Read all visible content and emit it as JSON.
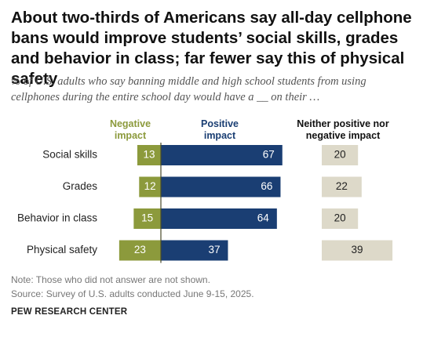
{
  "title": "About two-thirds of Americans say all-day cellphone bans would improve students’ social skills, grades and behavior in class; far fewer say this of physical safety",
  "subtitle": "% of U.S. adults who say banning middle and high school students from using cellphones during the entire school day would have a __ on their …",
  "colors": {
    "negative": "#8c9a3c",
    "positive": "#1a3e73",
    "neither": "#ddd9c9",
    "divider": "#4a4a2a"
  },
  "chart_data": {
    "type": "bar",
    "categories": [
      "Social skills",
      "Grades",
      "Behavior in class",
      "Physical safety"
    ],
    "series": [
      {
        "name": "Negative impact",
        "values": [
          13,
          12,
          15,
          23
        ]
      },
      {
        "name": "Positive impact",
        "values": [
          67,
          66,
          64,
          37
        ]
      },
      {
        "name": "Neither positive nor negative impact",
        "values": [
          20,
          22,
          20,
          39
        ]
      }
    ]
  },
  "note": "Note: Those who did not answer are not shown.",
  "source": "Source: Survey of U.S. adults conducted June 9-15, 2025.",
  "brand": "PEW RESEARCH CENTER"
}
